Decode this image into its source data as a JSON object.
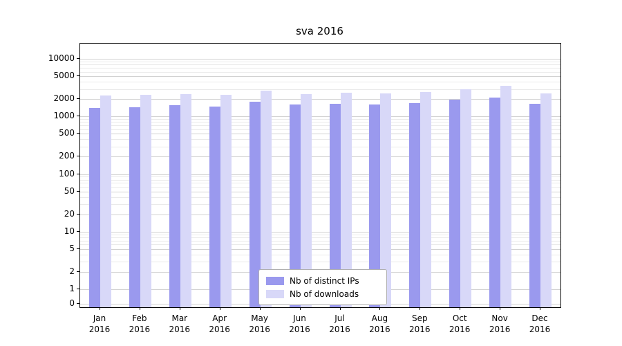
{
  "chart_data": {
    "type": "bar",
    "title": "sva 2016",
    "months": [
      "Jan",
      "Feb",
      "Mar",
      "Apr",
      "May",
      "Jun",
      "Jul",
      "Aug",
      "Sep",
      "Oct",
      "Nov",
      "Dec"
    ],
    "year": "2016",
    "series": [
      {
        "name": "Nb of distinct IPs",
        "color": "#9a99ee",
        "values": [
          1400,
          1450,
          1550,
          1500,
          1800,
          1600,
          1650,
          1600,
          1700,
          1950,
          2150,
          1650
        ]
      },
      {
        "name": "Nb of downloads",
        "color": "#d8d8f8",
        "values": [
          2300,
          2350,
          2450,
          2350,
          2800,
          2450,
          2550,
          2500,
          2650,
          3000,
          3400,
          2500
        ]
      }
    ],
    "yscale": "symlog",
    "yticks": [
      0,
      1,
      2,
      5,
      10,
      20,
      50,
      100,
      200,
      500,
      1000,
      2000,
      5000,
      10000
    ],
    "ylim": [
      0,
      18000
    ],
    "grid": "horizontal",
    "legend_position": "lower center"
  }
}
